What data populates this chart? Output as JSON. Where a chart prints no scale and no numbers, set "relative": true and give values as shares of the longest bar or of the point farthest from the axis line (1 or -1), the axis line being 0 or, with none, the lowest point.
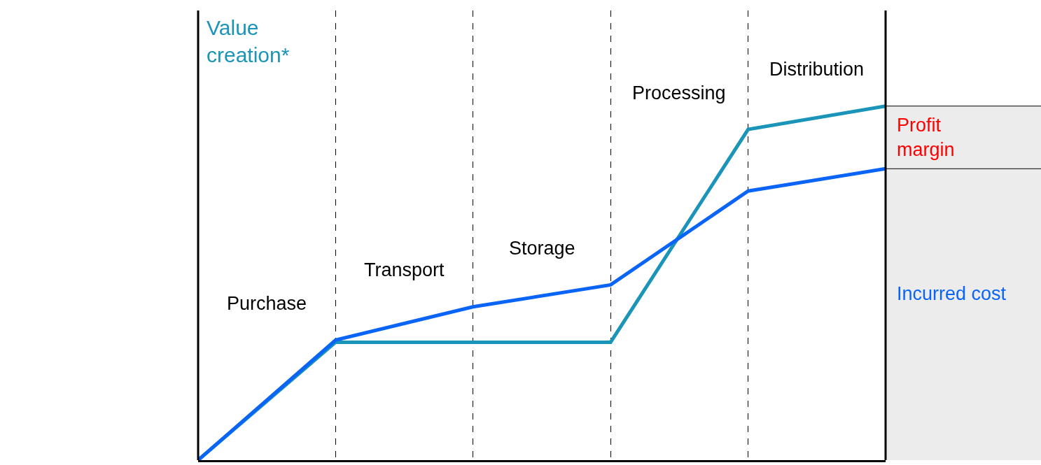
{
  "chart_data": {
    "type": "line",
    "relative": true,
    "categories": [
      null,
      null,
      null,
      null,
      null,
      null
    ],
    "series": [
      {
        "name": "Value creation*",
        "color": "#1a94b8",
        "values": [
          0,
          0.333,
          0.333,
          0.333,
          0.934,
          1
        ]
      },
      {
        "name": "Incurred cost",
        "color": "#0a64f5",
        "values": [
          0,
          0.339,
          0.433,
          0.495,
          0.76,
          0.823
        ]
      }
    ],
    "annotations": [
      "Purchase",
      "Transport",
      "Storage",
      "Processing",
      "Distribution",
      "Profit margin"
    ],
    "grid": "x",
    "line_style": "solid",
    "marker": "none"
  }
}
